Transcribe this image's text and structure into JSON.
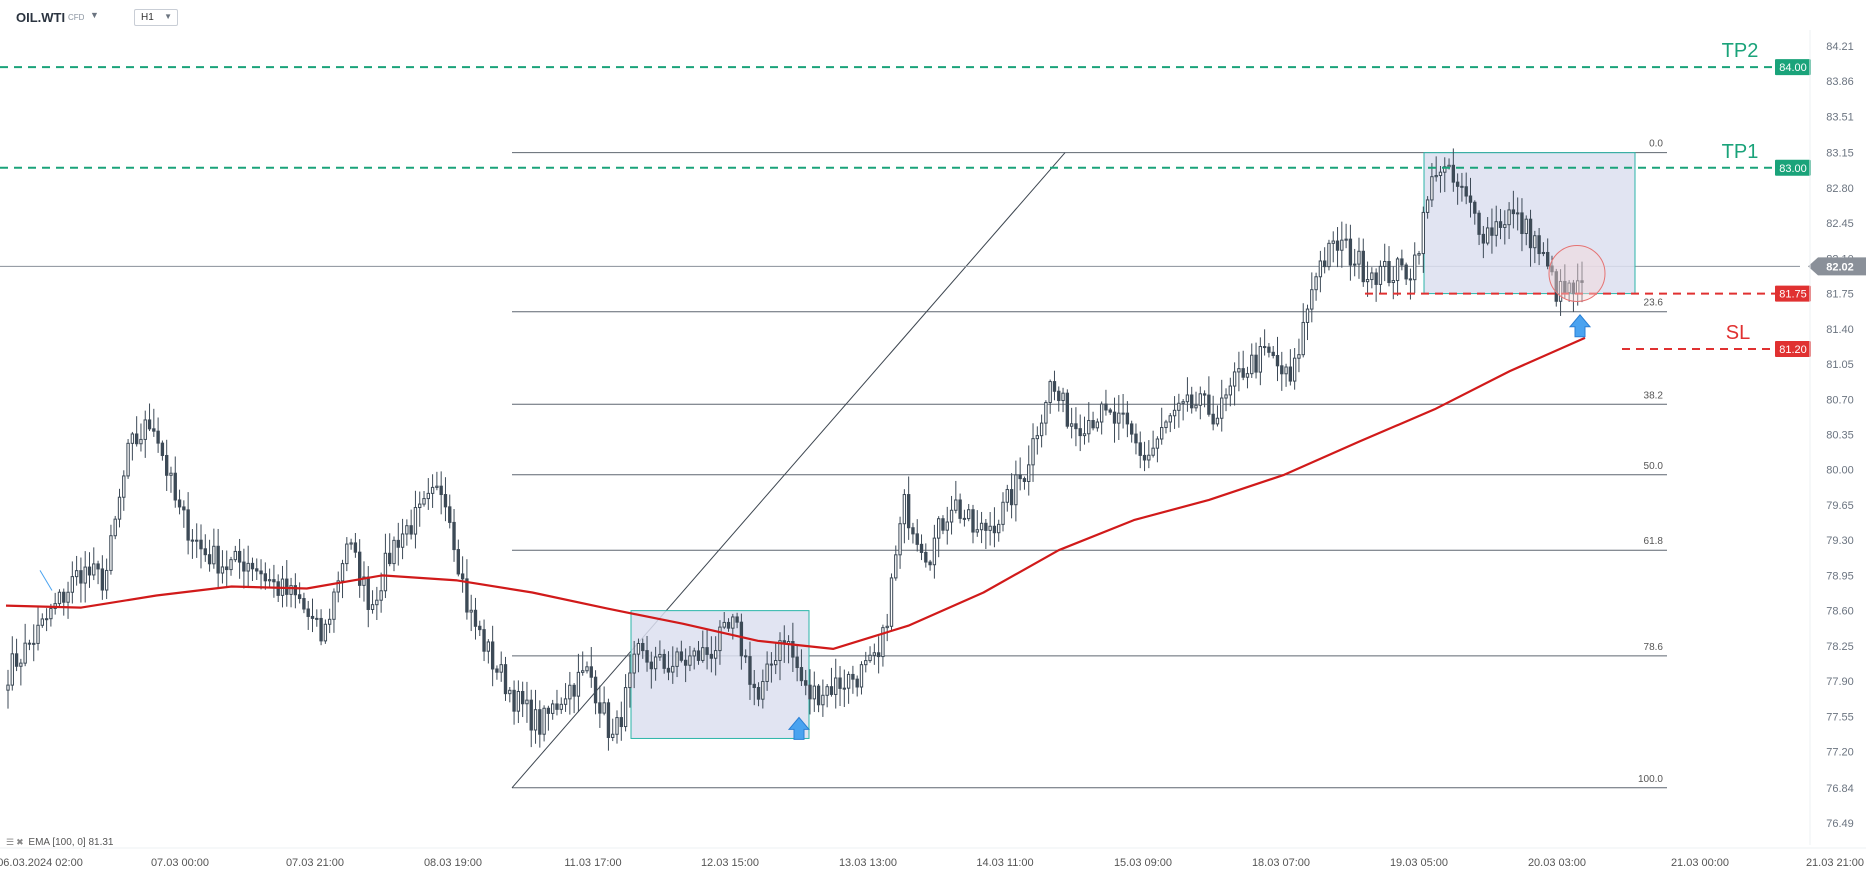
{
  "toolbar": {
    "symbol": "OIL.WTI",
    "symbol_type": "CFD",
    "timeframe": "H1"
  },
  "indicator_legend": {
    "label": "EMA",
    "params": "[100, 0]",
    "value": "81.31"
  },
  "chart_data": {
    "type": "candlestick",
    "instrument": "OIL.WTI",
    "timeframe": "H1",
    "ylim": [
      76.49,
      84.3
    ],
    "y_ticks": [
      "84.21",
      "83.86",
      "83.51",
      "83.15",
      "82.80",
      "82.45",
      "82.10",
      "81.75",
      "81.40",
      "81.05",
      "80.70",
      "80.35",
      "80.00",
      "79.65",
      "79.30",
      "78.95",
      "78.60",
      "78.25",
      "77.90",
      "77.55",
      "77.20",
      "76.84",
      "76.49"
    ],
    "x_ticks": [
      "06.03.2024   02:00",
      "07.03   00:00",
      "07.03   21:00",
      "08.03   19:00",
      "11.03   17:00",
      "12.03   15:00",
      "13.03   13:00",
      "14.03   11:00",
      "15.03   09:00",
      "18.03   07:00",
      "19.03   05:00",
      "20.03   03:00",
      "21.03   00:00",
      "21.03   21:00"
    ],
    "current_price": "82.02",
    "price_path": [
      78.0,
      78.3,
      78.65,
      79.0,
      78.9,
      80.2,
      80.5,
      79.6,
      79.2,
      79.05,
      79.1,
      78.85,
      78.7,
      78.3,
      79.3,
      78.65,
      79.3,
      79.55,
      79.85,
      78.6,
      78.1,
      77.7,
      77.45,
      77.8,
      78.0,
      77.3,
      78.15,
      78.05,
      78.1,
      78.2,
      78.45,
      77.7,
      78.4,
      77.75,
      77.85,
      77.95,
      78.1,
      79.65,
      79.15,
      79.7,
      79.35,
      79.55,
      80.0,
      80.85,
      80.45,
      80.55,
      80.45,
      80.1,
      80.5,
      80.65,
      80.55,
      81.0,
      81.15,
      80.85,
      82.0,
      82.25,
      82.0,
      81.95,
      82.0,
      83.05,
      82.75,
      82.35,
      82.55,
      82.3,
      81.75,
      81.78
    ],
    "series": [
      {
        "name": "EMA [100, 0]",
        "color": "#d11a1a",
        "values": [
          78.65,
          78.63,
          78.75,
          78.84,
          78.82,
          78.95,
          78.9,
          78.78,
          78.62,
          78.47,
          78.3,
          78.22,
          78.45,
          78.78,
          79.2,
          79.5,
          79.7,
          79.95,
          80.28,
          80.6,
          80.98,
          81.31
        ]
      }
    ],
    "fibonacci": {
      "levels": [
        {
          "label": "0.0",
          "value": 83.15
        },
        {
          "label": "23.6",
          "value": 81.57
        },
        {
          "label": "38.2",
          "value": 80.65
        },
        {
          "label": "50.0",
          "value": 79.95
        },
        {
          "label": "61.8",
          "value": 79.2
        },
        {
          "label": "78.6",
          "value": 78.15
        },
        {
          "label": "100.0",
          "value": 76.84
        }
      ]
    },
    "levels": [
      {
        "name": "TP2",
        "price_label": "84.00",
        "value": 84.0,
        "color": "#1aa37a"
      },
      {
        "name": "TP1",
        "price_label": "83.00",
        "value": 83.0,
        "color": "#1aa37a"
      },
      {
        "name": "",
        "price_label": "81.75",
        "value": 81.75,
        "color": "#e03131"
      },
      {
        "name": "SL",
        "price_label": "81.20",
        "value": 81.2,
        "color": "#e03131"
      }
    ],
    "colors": {
      "candle": "#3d4a57",
      "ema": "#d11a1a",
      "target": "#1aa37a",
      "stop": "#e03131",
      "zone_fill": "#dcdff0",
      "zone_border": "#2bb5a8",
      "arrow": "#4aa3f0",
      "grid": "#e6e8eb"
    }
  }
}
